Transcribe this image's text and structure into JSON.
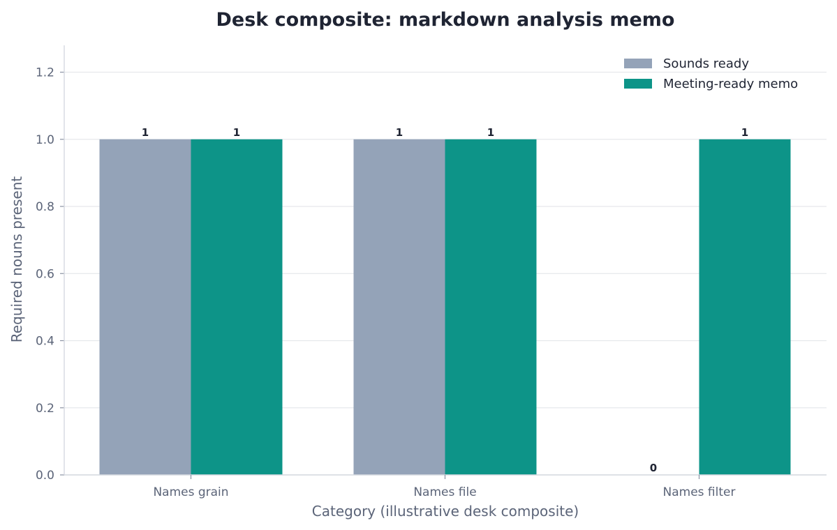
{
  "chart_data": {
    "type": "bar",
    "title": "Desk composite: markdown analysis memo",
    "xlabel": "Category (illustrative desk composite)",
    "ylabel": "Required nouns present",
    "categories": [
      "Names grain",
      "Names file",
      "Names filter"
    ],
    "series": [
      {
        "name": "Sounds ready",
        "values": [
          1,
          1,
          0
        ],
        "color": "#94a3b8"
      },
      {
        "name": "Meeting-ready memo",
        "values": [
          1,
          1,
          1
        ],
        "color": "#0d9488"
      }
    ],
    "ylim": [
      0,
      1.28
    ],
    "yticks": [
      "0.0",
      "0.2",
      "0.4",
      "0.6",
      "0.8",
      "1.0",
      "1.2"
    ],
    "grid": true,
    "legend_position": "top-right"
  }
}
